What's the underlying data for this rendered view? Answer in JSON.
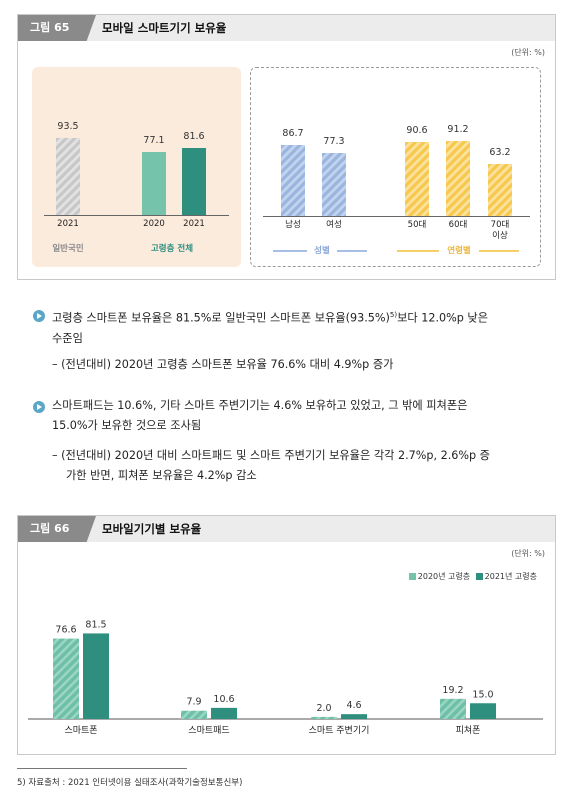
{
  "figure65": {
    "tag": "그림 65",
    "title": "모바일 스마트기기 보유율",
    "unit": "(단위: %)",
    "left_panel": {
      "general": {
        "label": "일반국민",
        "year": "2021",
        "value": 93.5,
        "color": "#c8c8c8"
      },
      "elderly": {
        "label": "고령층 전체",
        "bars": [
          {
            "year": "2020",
            "value": 77.1,
            "color": "#76c3ac"
          },
          {
            "year": "2021",
            "value": 81.6,
            "color": "#2f8f7f"
          }
        ]
      }
    },
    "right_panel": {
      "gender": {
        "label": "성별",
        "bars": [
          {
            "cat": "남성",
            "value": 86.7
          },
          {
            "cat": "여성",
            "value": 77.3
          }
        ],
        "color": "#9bb6de"
      },
      "age": {
        "label": "연령별",
        "bars": [
          {
            "cat": "50대",
            "value": 90.6
          },
          {
            "cat": "60대",
            "value": 91.2
          },
          {
            "cat": "70대\n이상",
            "value": 63.2
          }
        ],
        "color": "#f6c84e"
      }
    }
  },
  "text": {
    "p1a": "고령층 스마트폰 보유율은 81.5%로 일반국민 스마트폰 보유율(93.5%)",
    "p1sup": "5)",
    "p1b": "보다 12.0%p 낮은",
    "p1c": "수준임",
    "s1": "– (전년대비) 2020년 고령층 스마트폰 보유율 76.6% 대비 4.9%p 증가",
    "p2a": "스마트패드는 10.6%, 기타 스마트 주변기기는 4.6% 보유하고 있었고, 그 밖에 피쳐폰은",
    "p2b": "15.0%가 보유한 것으로 조사됨",
    "s2a": "– (전년대비) 2020년 대비 스마트패드 및 스마트 주변기기 보유율은 각각 2.7%p, 2.6%p 증",
    "s2b": "가한 반면, 피쳐폰 보유율은 4.2%p 감소"
  },
  "figure66": {
    "tag": "그림 66",
    "title": "모바일기기별 보유율",
    "unit": "(단위: %)",
    "legend": [
      {
        "label": "2020년 고령층",
        "color": "#76c3ac"
      },
      {
        "label": "2021년 고령층",
        "color": "#2f8f7f"
      }
    ]
  },
  "chart_data": {
    "type": "bar",
    "categories": [
      "스마트폰",
      "스마트패드",
      "스마트 주변기기",
      "피쳐폰"
    ],
    "series": [
      {
        "name": "2020년 고령층",
        "values": [
          76.6,
          7.9,
          2.0,
          19.2
        ]
      },
      {
        "name": "2021년 고령층",
        "values": [
          81.5,
          10.6,
          4.6,
          15.0
        ]
      }
    ],
    "title": "모바일기기별 보유율",
    "ylabel": "",
    "ylim": [
      0,
      100
    ],
    "legend": "top-right"
  },
  "footnote": "5) 자료출처 : 2021 인터넷이용 실태조사(과학기술정보통신부)"
}
